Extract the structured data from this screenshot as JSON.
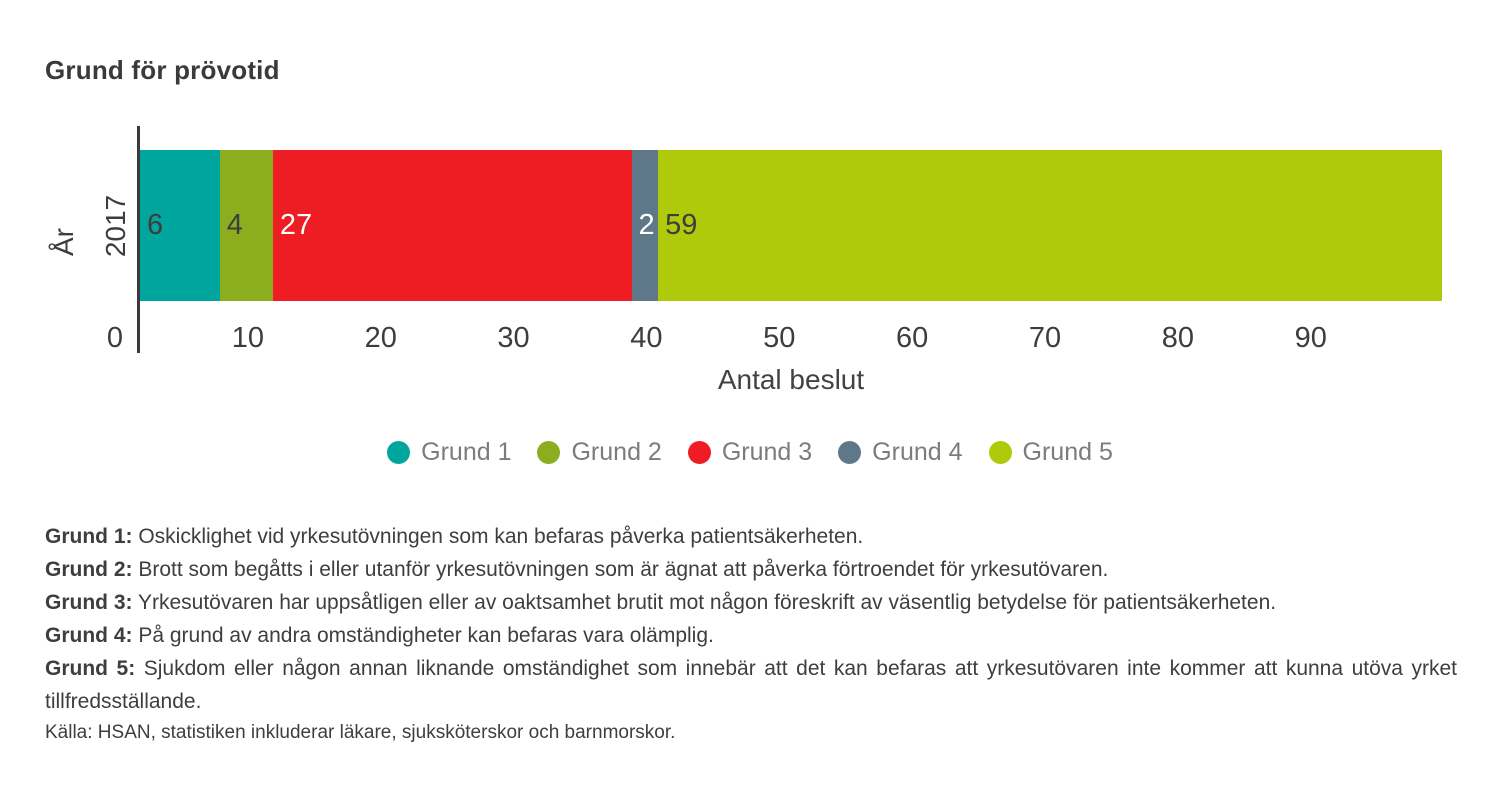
{
  "title": "Grund för prövotid",
  "chart_data": {
    "type": "bar",
    "orientation": "horizontal",
    "stacked": true,
    "title": "Grund för prövotid",
    "categories": [
      "2017"
    ],
    "series": [
      {
        "name": "Grund 1",
        "values": [
          6
        ],
        "color": "#00A69D",
        "label_color": "#3d3d3d"
      },
      {
        "name": "Grund 2",
        "values": [
          4
        ],
        "color": "#8CAD1E",
        "label_color": "#3d3d3d"
      },
      {
        "name": "Grund 3",
        "values": [
          27
        ],
        "color": "#EE1C23",
        "label_color": "#ffffff"
      },
      {
        "name": "Grund 4",
        "values": [
          2
        ],
        "color": "#5F7889",
        "label_color": "#ffffff"
      },
      {
        "name": "Grund 5",
        "values": [
          59
        ],
        "color": "#AFCA0A",
        "label_color": "#3d3d3d"
      }
    ],
    "total": 98,
    "xlabel": "Antal beslut",
    "ylabel": "År",
    "xlim": [
      0,
      98
    ],
    "xticks": [
      0,
      10,
      20,
      30,
      40,
      50,
      60,
      70,
      80,
      90
    ],
    "grid": false,
    "legend_position": "bottom"
  },
  "footnotes": [
    {
      "label": "Grund 1:",
      "text": "Oskicklighet vid yrkesutövningen som kan befaras påverka patientsäkerheten.",
      "justify": false
    },
    {
      "label": "Grund 2:",
      "text": "Brott som begåtts i eller utanför yrkesutövningen som är ägnat att påverka förtroendet för yrkesutövaren.",
      "justify": false
    },
    {
      "label": "Grund 3:",
      "text": "Yrkesutövaren har uppsåtligen eller av oaktsamhet brutit mot någon föreskrift av väsentlig betydelse för patientsäkerheten.",
      "justify": false
    },
    {
      "label": "Grund 4:",
      "text": "På grund av andra omständigheter kan befaras vara olämplig.",
      "justify": false
    },
    {
      "label": "Grund 5:",
      "text": "Sjukdom eller någon annan liknande omständighet som innebär att det kan befaras att yrkesutövaren inte kommer att kunna utöva yrket tillfredsställande.",
      "justify": true
    }
  ],
  "source": "Källa: HSAN, statistiken inkluderar läkare, sjuksköterskor och barnmorskor."
}
